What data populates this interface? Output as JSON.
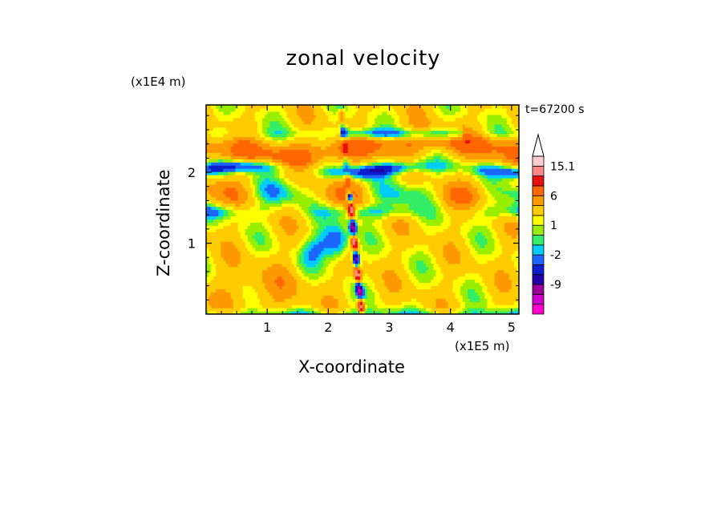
{
  "chart_data": {
    "type": "heatmap",
    "title": "zonal velocity",
    "xlabel": "X-coordinate",
    "ylabel": "Z-coordinate",
    "x_unit": "(x1E5 m)",
    "y_unit": "(x1E4 m)",
    "annotation": "t=67200 s",
    "xlim": [
      0,
      5.12
    ],
    "ylim": [
      0,
      2.95
    ],
    "x_ticks": [
      1,
      2,
      3,
      4,
      5
    ],
    "y_ticks": [
      1,
      2
    ],
    "colorbar": {
      "levels": [
        -15,
        -12,
        -9,
        -6,
        -4,
        -2,
        -1,
        0,
        1,
        2,
        4,
        6,
        9,
        12,
        15.1
      ],
      "colors": [
        "#ff00cc",
        "#cc00cc",
        "#990099",
        "#2200aa",
        "#0a1ecc",
        "#1a66ff",
        "#00ccff",
        "#33ee66",
        "#99ee00",
        "#ffff00",
        "#ffcc00",
        "#ff9900",
        "#ff6600",
        "#e81010",
        "#ff8888",
        "#ffcccc"
      ],
      "tick_labels": [
        "15.1",
        "6",
        "1",
        "-2",
        "-9"
      ],
      "extend": "max"
    }
  }
}
